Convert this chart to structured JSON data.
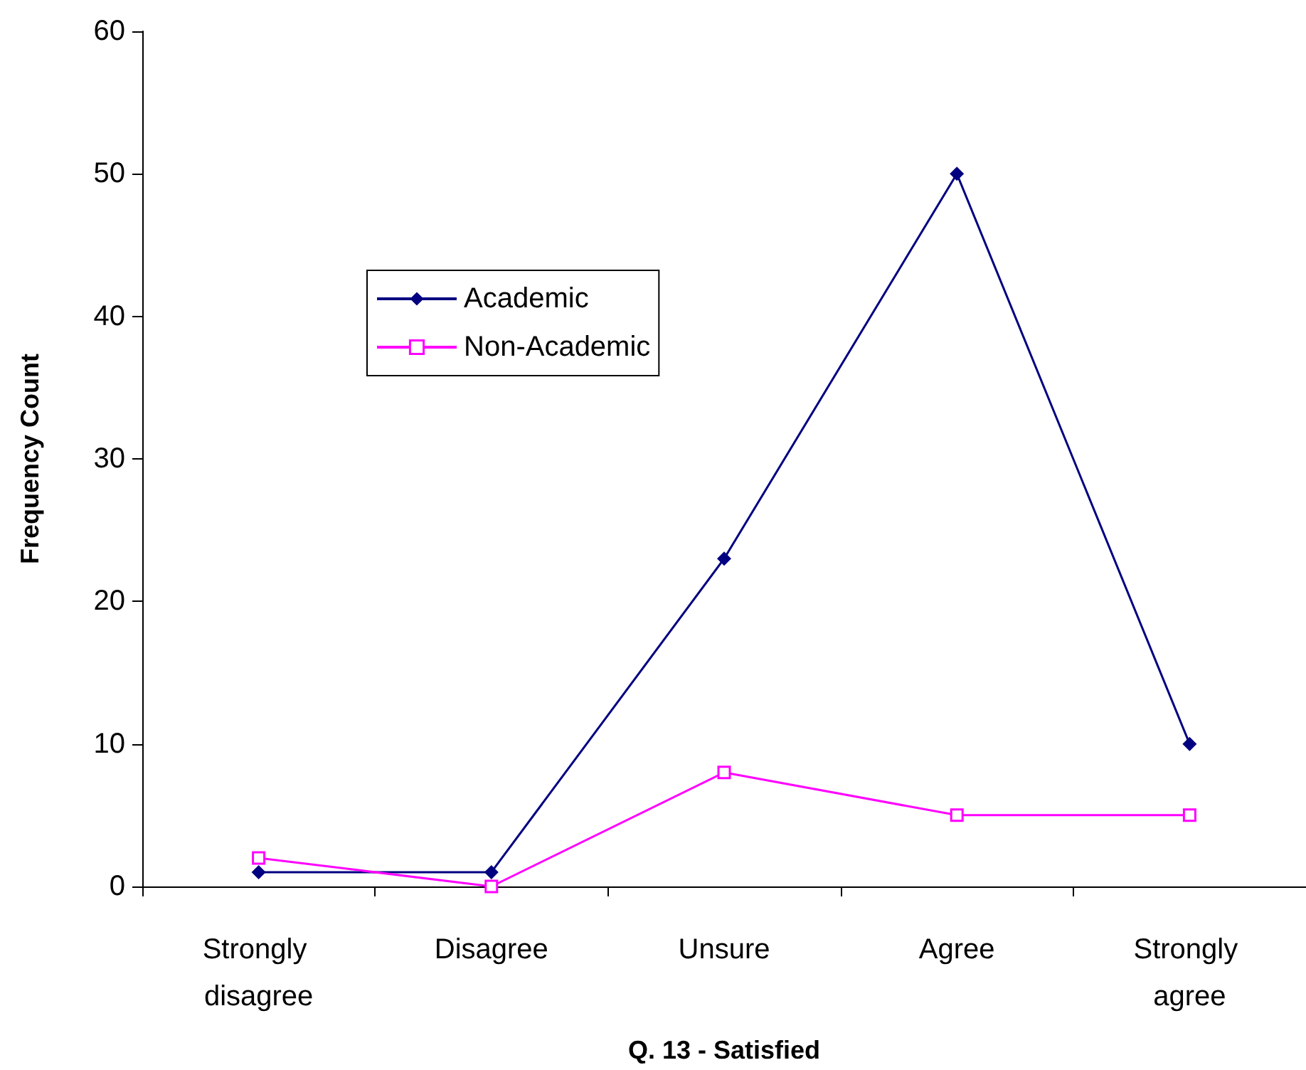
{
  "chart_data": {
    "type": "line",
    "xlabel": "Q. 13 - Satisfied",
    "ylabel": "Frequency Count",
    "categories": [
      "Strongly disagree",
      "Disagree",
      "Unsure",
      "Agree",
      "Strongly agree"
    ],
    "series": [
      {
        "name": "Academic",
        "color": "#000080",
        "marker": "diamond",
        "values": [
          1,
          1,
          23,
          50,
          10
        ]
      },
      {
        "name": "Non-Academic",
        "color": "#ff00ff",
        "marker": "square",
        "values": [
          2,
          0,
          8,
          5,
          5
        ]
      }
    ],
    "ylim": [
      0,
      60
    ],
    "yticks": [
      0,
      10,
      20,
      30,
      40,
      50,
      60
    ],
    "grid": false,
    "legend": "top left",
    "line_style": "solid"
  }
}
